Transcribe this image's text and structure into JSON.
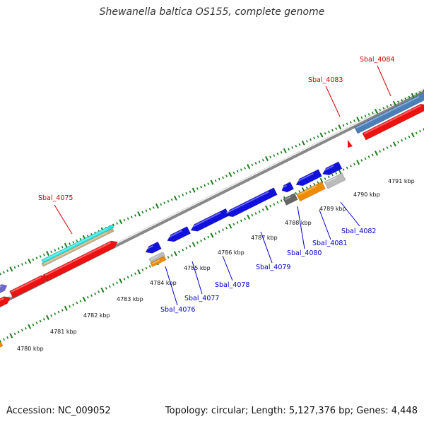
{
  "title": "Shewanella baltica OS155, complete genome",
  "footer": {
    "accession": "Accession: NC_009052",
    "summary": "Topology: circular; Length: 5,127,376 bp; Genes: 4,448"
  },
  "colors": {
    "backbone": "#888888",
    "tick": "#1a7a1a",
    "top_strand_label": "#cc0000",
    "bottom_strand_label": "#0000cc",
    "gene_red": "#ee1111",
    "gene_blue": "#1111dd",
    "gene_steelblue": "#4a7fb8",
    "gene_cyan": "#22e5e5",
    "gene_tan": "#c2b280",
    "gene_orange": "#f08a00",
    "gene_grey": "#bbbbbb",
    "gene_darkgrey": "#666666",
    "gene_slate": "#6a6ac8"
  },
  "kbp_labels": [
    "4780 kbp",
    "4781 kbp",
    "4782 kbp",
    "4783 kbp",
    "4784 kbp",
    "4785 kbp",
    "4786 kbp",
    "4787 kbp",
    "4788 kbp",
    "4789 kbp",
    "4790 kbp",
    "4791 kbp"
  ],
  "top_genes": [
    "Sbal_4075",
    "Sbal_4083",
    "Sbal_4084"
  ],
  "bottom_genes": [
    "Sbal_4076",
    "Sbal_4077",
    "Sbal_4078",
    "Sbal_4079",
    "Sbal_4080",
    "Sbal_4081",
    "Sbal_4082"
  ]
}
